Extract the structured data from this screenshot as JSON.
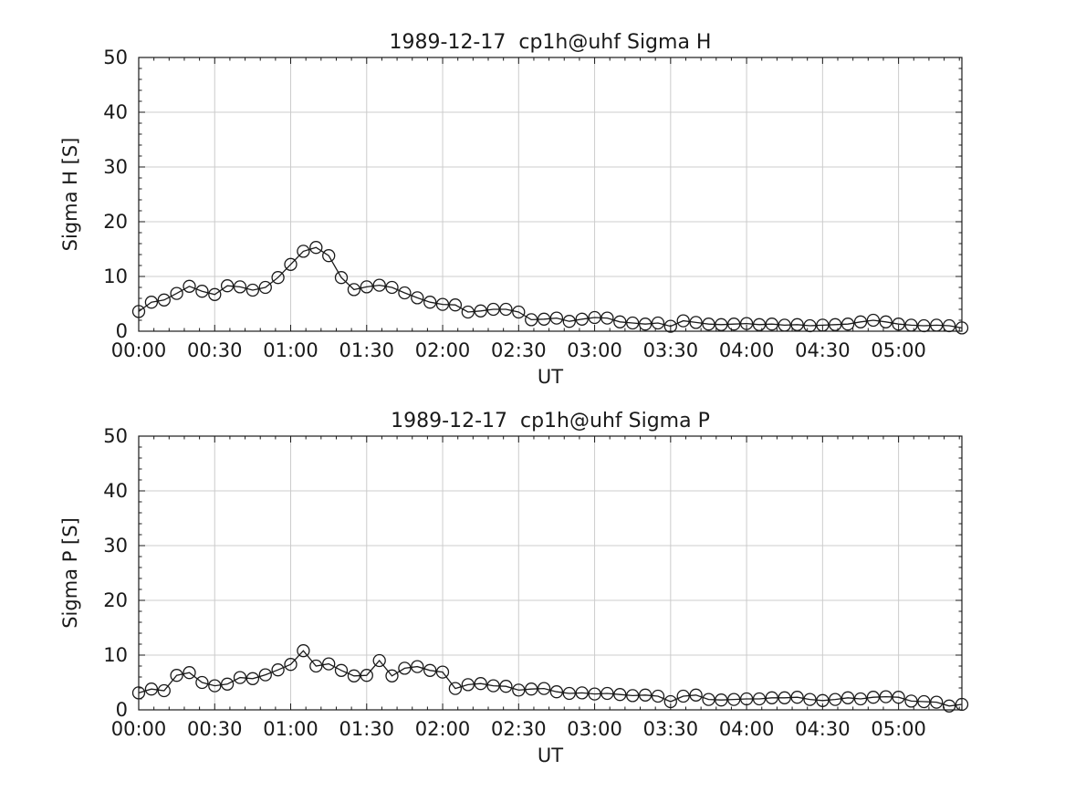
{
  "figure": {
    "background": "#ffffff",
    "axis_color": "#1a1a1a",
    "grid_color": "#cccccc",
    "line_color": "#1a1a1a",
    "marker_style": "open-circle"
  },
  "chart_data": [
    {
      "type": "line",
      "title": "1989-12-17  cp1h@uhf Sigma H",
      "xlabel": "UT",
      "ylabel": "Sigma H [S]",
      "ylim": [
        0,
        50
      ],
      "yticks": [
        0,
        10,
        20,
        30,
        40,
        50
      ],
      "y_minor_step": 2,
      "xlim_minutes": [
        0,
        325
      ],
      "xtick_minutes": [
        0,
        30,
        60,
        90,
        120,
        150,
        180,
        210,
        240,
        270,
        300
      ],
      "xtick_labels": [
        "00:00",
        "00:30",
        "01:00",
        "01:30",
        "02:00",
        "02:30",
        "03:00",
        "03:30",
        "04:00",
        "04:30",
        "05:00"
      ],
      "x_minor_step_minutes": 6,
      "grid": "major",
      "sample_step_minutes": 5,
      "times": [
        "00:00",
        "00:05",
        "00:10",
        "00:15",
        "00:20",
        "00:25",
        "00:30",
        "00:35",
        "00:40",
        "00:45",
        "00:50",
        "00:55",
        "01:00",
        "01:05",
        "01:10",
        "01:15",
        "01:20",
        "01:25",
        "01:30",
        "01:35",
        "01:40",
        "01:45",
        "01:50",
        "01:55",
        "02:00",
        "02:05",
        "02:10",
        "02:15",
        "02:20",
        "02:25",
        "02:30",
        "02:35",
        "02:40",
        "02:45",
        "02:50",
        "02:55",
        "03:00",
        "03:05",
        "03:10",
        "03:15",
        "03:20",
        "03:25",
        "03:30",
        "03:35",
        "03:40",
        "03:45",
        "03:50",
        "03:55",
        "04:00",
        "04:05",
        "04:10",
        "04:15",
        "04:20",
        "04:25",
        "04:30",
        "04:35",
        "04:40",
        "04:45",
        "04:50",
        "04:55",
        "05:00",
        "05:05",
        "05:10",
        "05:15",
        "05:20",
        "05:25"
      ],
      "values": [
        3.6,
        5.3,
        5.7,
        6.9,
        8.2,
        7.3,
        6.7,
        8.3,
        8.1,
        7.5,
        8.0,
        9.8,
        12.2,
        14.6,
        15.3,
        13.8,
        9.8,
        7.6,
        8.1,
        8.4,
        8.0,
        7.0,
        6.1,
        5.3,
        4.9,
        4.8,
        3.5,
        3.7,
        4.0,
        4.0,
        3.5,
        2.1,
        2.2,
        2.4,
        1.8,
        2.2,
        2.5,
        2.4,
        1.7,
        1.5,
        1.3,
        1.5,
        0.9,
        1.9,
        1.6,
        1.3,
        1.2,
        1.3,
        1.4,
        1.2,
        1.3,
        1.1,
        1.2,
        1.0,
        1.1,
        1.2,
        1.3,
        1.7,
        2.0,
        1.7,
        1.3,
        1.1,
        1.0,
        1.1,
        1.0,
        0.6
      ]
    },
    {
      "type": "line",
      "title": "1989-12-17  cp1h@uhf Sigma P",
      "xlabel": "UT",
      "ylabel": "Sigma P [S]",
      "ylim": [
        0,
        50
      ],
      "yticks": [
        0,
        10,
        20,
        30,
        40,
        50
      ],
      "y_minor_step": 2,
      "xlim_minutes": [
        0,
        325
      ],
      "xtick_minutes": [
        0,
        30,
        60,
        90,
        120,
        150,
        180,
        210,
        240,
        270,
        300
      ],
      "xtick_labels": [
        "00:00",
        "00:30",
        "01:00",
        "01:30",
        "02:00",
        "02:30",
        "03:00",
        "03:30",
        "04:00",
        "04:30",
        "05:00"
      ],
      "x_minor_step_minutes": 6,
      "grid": "major",
      "sample_step_minutes": 5,
      "times": [
        "00:00",
        "00:05",
        "00:10",
        "00:15",
        "00:20",
        "00:25",
        "00:30",
        "00:35",
        "00:40",
        "00:45",
        "00:50",
        "00:55",
        "01:00",
        "01:05",
        "01:10",
        "01:15",
        "01:20",
        "01:25",
        "01:30",
        "01:35",
        "01:40",
        "01:45",
        "01:50",
        "01:55",
        "02:00",
        "02:05",
        "02:10",
        "02:15",
        "02:20",
        "02:25",
        "02:30",
        "02:35",
        "02:40",
        "02:45",
        "02:50",
        "02:55",
        "03:00",
        "03:05",
        "03:10",
        "03:15",
        "03:20",
        "03:25",
        "03:30",
        "03:35",
        "03:40",
        "03:45",
        "03:50",
        "03:55",
        "04:00",
        "04:05",
        "04:10",
        "04:15",
        "04:20",
        "04:25",
        "04:30",
        "04:35",
        "04:40",
        "04:45",
        "04:50",
        "04:55",
        "05:00",
        "05:05",
        "05:10",
        "05:15",
        "05:20",
        "05:25"
      ],
      "values": [
        3.1,
        3.8,
        3.5,
        6.3,
        6.8,
        5.0,
        4.4,
        4.7,
        5.9,
        5.7,
        6.4,
        7.3,
        8.3,
        10.8,
        8.0,
        8.4,
        7.2,
        6.2,
        6.3,
        9.0,
        6.2,
        7.6,
        7.9,
        7.2,
        6.9,
        3.9,
        4.6,
        4.8,
        4.4,
        4.3,
        3.6,
        3.8,
        3.9,
        3.3,
        3.0,
        3.1,
        2.9,
        3.0,
        2.8,
        2.6,
        2.7,
        2.5,
        1.5,
        2.5,
        2.7,
        1.9,
        1.8,
        1.9,
        2.0,
        2.0,
        2.2,
        2.2,
        2.3,
        1.9,
        1.7,
        1.9,
        2.2,
        2.0,
        2.3,
        2.4,
        2.3,
        1.6,
        1.5,
        1.4,
        0.7,
        1.0
      ]
    }
  ]
}
